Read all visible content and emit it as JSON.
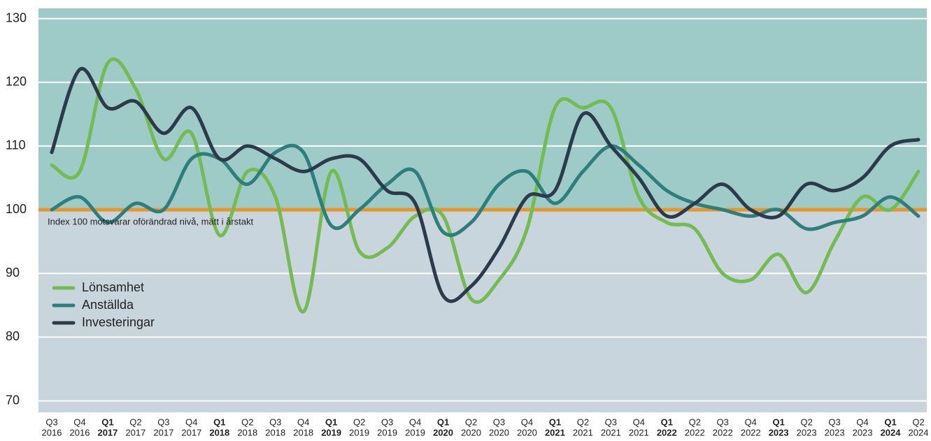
{
  "chart_data": {
    "type": "line",
    "annotation": "Index 100 motsvarar oförändrad nivå, mätt i årstakt",
    "categories": [
      [
        "Q3",
        "2016"
      ],
      [
        "Q4",
        "2016"
      ],
      [
        "Q1",
        "2017"
      ],
      [
        "Q2",
        "2017"
      ],
      [
        "Q3",
        "2017"
      ],
      [
        "Q4",
        "2017"
      ],
      [
        "Q1",
        "2018"
      ],
      [
        "Q2",
        "2018"
      ],
      [
        "Q3",
        "2018"
      ],
      [
        "Q4",
        "2018"
      ],
      [
        "Q1",
        "2019"
      ],
      [
        "Q2",
        "2019"
      ],
      [
        "Q3",
        "2019"
      ],
      [
        "Q4",
        "2019"
      ],
      [
        "Q1",
        "2020"
      ],
      [
        "Q2",
        "2020"
      ],
      [
        "Q3",
        "2020"
      ],
      [
        "Q4",
        "2020"
      ],
      [
        "Q1",
        "2021"
      ],
      [
        "Q2",
        "2021"
      ],
      [
        "Q3",
        "2021"
      ],
      [
        "Q4",
        "2021"
      ],
      [
        "Q1",
        "2022"
      ],
      [
        "Q2",
        "2022"
      ],
      [
        "Q3",
        "2022"
      ],
      [
        "Q4",
        "2022"
      ],
      [
        "Q1",
        "2023"
      ],
      [
        "Q2",
        "2023"
      ],
      [
        "Q3",
        "2023"
      ],
      [
        "Q4",
        "2023"
      ],
      [
        "Q1",
        "2024"
      ],
      [
        "Q2",
        "2024"
      ]
    ],
    "series": [
      {
        "name": "Lönsamhet",
        "color": "#74bb52",
        "values": [
          107,
          106,
          123,
          119,
          108,
          112,
          96,
          106,
          102,
          84,
          106,
          93.5,
          94,
          99,
          99,
          86,
          89,
          97,
          116,
          116,
          116,
          102,
          98,
          97,
          90,
          89,
          93,
          87,
          95,
          102,
          100,
          106
        ]
      },
      {
        "name": "Anställda",
        "color": "#2e7f7c",
        "values": [
          100,
          102,
          98,
          101,
          100,
          108,
          108,
          104,
          109,
          109,
          97.5,
          100,
          104,
          106,
          96.5,
          98,
          104,
          106,
          101,
          106,
          110,
          107,
          103,
          101,
          100,
          99,
          100,
          97,
          98,
          99,
          102,
          99
        ]
      },
      {
        "name": "Investeringar",
        "color": "#2b3b4c",
        "values": [
          109,
          122,
          116,
          117,
          112,
          116,
          108,
          110,
          108,
          106,
          108,
          108,
          103,
          101,
          86.5,
          88,
          94,
          102,
          103,
          115,
          110,
          105,
          99,
          101,
          104,
          100,
          99,
          104,
          103,
          105,
          110,
          111
        ]
      }
    ],
    "ylim": [
      68.2,
      131.6
    ],
    "yticks": [
      70,
      80,
      90,
      100,
      110,
      120,
      130
    ],
    "grid": true,
    "reference_line": {
      "value": 100,
      "color": "#e8962a"
    },
    "above_color": "#9ecbc8",
    "below_color": "#c9d5dd",
    "legend": "lower left"
  }
}
